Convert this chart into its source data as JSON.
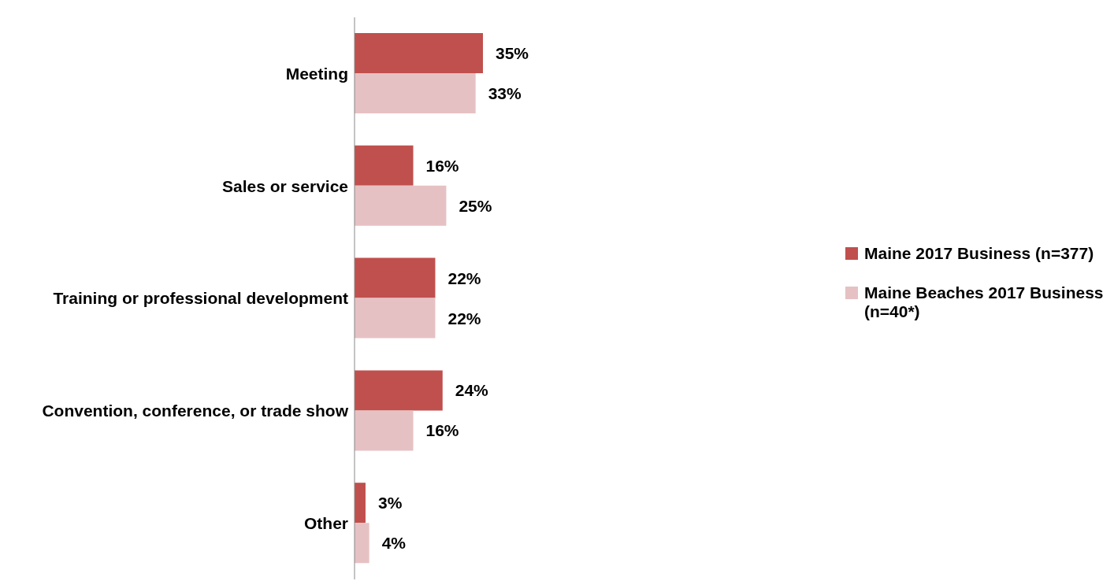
{
  "chart_data": {
    "type": "bar",
    "orientation": "horizontal",
    "categories": [
      "Meeting",
      "Sales or service",
      "Training or professional development",
      "Convention, conference, or trade show",
      "Other"
    ],
    "series": [
      {
        "name": "Maine 2017 Business (n=377)",
        "color": "#c0504d",
        "values": [
          35,
          16,
          22,
          24,
          3
        ],
        "value_labels": [
          "35%",
          "16%",
          "22%",
          "24%",
          "3%"
        ]
      },
      {
        "name": "Maine Beaches 2017 Business (n=40*)",
        "color": "#e6c1c3",
        "values": [
          33,
          25,
          22,
          16,
          4
        ],
        "value_labels": [
          "33%",
          "25%",
          "22%",
          "16%",
          "4%"
        ]
      }
    ],
    "legend": "right",
    "grid": false
  }
}
